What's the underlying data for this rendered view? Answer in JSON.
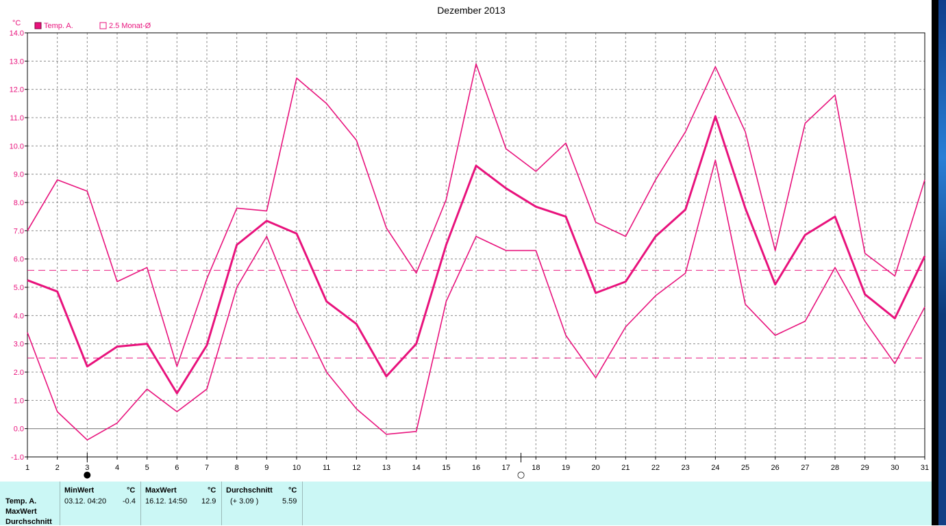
{
  "chart_data": {
    "type": "line",
    "title": "Dezember 2013",
    "unit_label": "°C",
    "x": [
      1,
      2,
      3,
      4,
      5,
      6,
      7,
      8,
      9,
      10,
      11,
      12,
      13,
      14,
      15,
      16,
      17,
      18,
      19,
      20,
      21,
      22,
      23,
      24,
      25,
      26,
      27,
      28,
      29,
      30,
      31
    ],
    "xlim": [
      1,
      31
    ],
    "ylim": [
      -1,
      14
    ],
    "y_ticks": [
      "-1.0",
      "0.0",
      "1.0",
      "2.0",
      "3.0",
      "4.0",
      "5.0",
      "6.0",
      "7.0",
      "8.0",
      "9.0",
      "10.0",
      "11.0",
      "12.0",
      "13.0",
      "14.0"
    ],
    "x_ticks": [
      "1",
      "2",
      "3",
      "4",
      "5",
      "6",
      "7",
      "8",
      "9",
      "10",
      "11",
      "12",
      "13",
      "14",
      "15",
      "16",
      "17",
      "18",
      "19",
      "20",
      "21",
      "22",
      "23",
      "24",
      "25",
      "26",
      "27",
      "28",
      "29",
      "30",
      "31"
    ],
    "grid": true,
    "legend": [
      {
        "label": "Temp. A.",
        "marker": "filled-square"
      },
      {
        "label": "2.5 Monat-Ø",
        "marker": "hollow-square"
      }
    ],
    "legend_position": "top-left",
    "series": [
      {
        "name": "Temp. A.",
        "role": "max",
        "color": "#e8127c",
        "values": [
          7.0,
          8.8,
          8.4,
          5.2,
          5.7,
          2.2,
          5.3,
          7.8,
          7.7,
          12.4,
          11.5,
          10.2,
          7.1,
          5.5,
          8.1,
          12.9,
          9.9,
          9.1,
          10.1,
          7.3,
          6.8,
          8.8,
          10.5,
          12.8,
          10.5,
          6.3,
          10.8,
          11.8,
          6.2,
          5.4,
          8.8
        ]
      },
      {
        "name": "Temp. A.",
        "role": "mean",
        "color": "#e8127c",
        "values": [
          5.25,
          4.85,
          2.2,
          2.9,
          3.0,
          1.25,
          2.95,
          6.5,
          7.35,
          6.9,
          4.5,
          3.7,
          1.85,
          3.0,
          6.5,
          9.3,
          8.5,
          7.85,
          7.5,
          4.8,
          5.2,
          6.8,
          7.75,
          11.05,
          7.8,
          5.1,
          6.85,
          7.5,
          4.75,
          3.9,
          6.1
        ]
      },
      {
        "name": "Temp. A.",
        "role": "min",
        "color": "#e8127c",
        "values": [
          3.4,
          0.6,
          -0.4,
          0.2,
          1.4,
          0.6,
          1.4,
          5.0,
          6.8,
          4.2,
          2.0,
          0.7,
          -0.2,
          -0.1,
          4.5,
          6.8,
          6.3,
          6.3,
          3.3,
          1.8,
          3.6,
          4.7,
          5.5,
          9.5,
          4.4,
          3.3,
          3.8,
          5.7,
          3.8,
          2.3,
          4.3
        ]
      }
    ],
    "reference_lines": [
      {
        "label": "2.5 Monat-Ø",
        "value": 5.6,
        "style": "dashed"
      },
      {
        "label": "2.5 Monat-Ø",
        "value": 2.5,
        "style": "dashed"
      }
    ],
    "markers": [
      {
        "day": 3,
        "symbol": "●"
      },
      {
        "day": 17.5,
        "symbol": "○"
      }
    ],
    "colors": {
      "series": "#e8127c",
      "grid": "#808080",
      "panel": "#cbf7f5"
    }
  },
  "stats": {
    "row_labels": [
      "Temp. A.",
      "MaxWert",
      "Durchschnitt"
    ],
    "min": {
      "header": "MinWert",
      "unit": "°C",
      "datetime": "03.12.  04:20",
      "value": "-0.4"
    },
    "max": {
      "header": "MaxWert",
      "unit": "°C",
      "datetime": "16.12.  14:50",
      "value": "12.9"
    },
    "avg": {
      "header": "Durchschnitt",
      "unit": "°C",
      "delta": "(+ 3.09 )",
      "value": "5.59"
    }
  }
}
